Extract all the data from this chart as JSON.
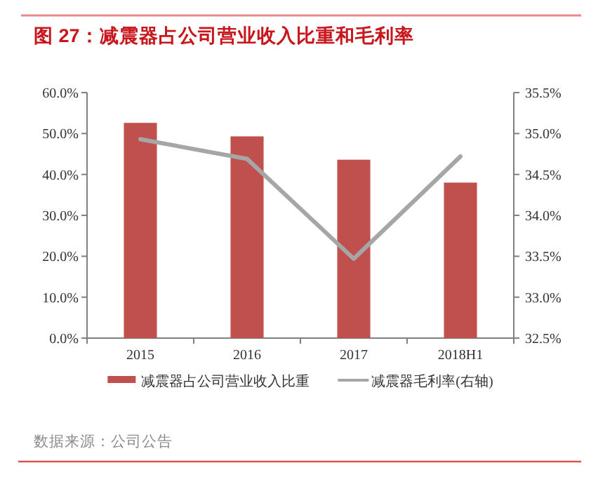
{
  "chart_data": {
    "type": "bar",
    "title": "图 27：减震器占公司营业收入比重和毛利率",
    "categories": [
      "2015",
      "2016",
      "2017",
      "2018H1"
    ],
    "series": [
      {
        "name": "减震器占公司营业收入比重",
        "color": "#c0504d",
        "values": [
          52.6,
          49.3,
          43.6,
          38.0
        ]
      },
      {
        "name": "减震器毛利率(右轴)",
        "type": "line",
        "axis": "y2",
        "color": "#a6a6a6",
        "values": [
          34.93,
          34.69,
          33.47,
          34.72
        ]
      }
    ],
    "ylim": [
      0,
      60
    ],
    "yticks": [
      {
        "value": 0,
        "label": "0.0%"
      },
      {
        "value": 10,
        "label": "10.0%"
      },
      {
        "value": 20,
        "label": "20.0%"
      },
      {
        "value": 30,
        "label": "30.0%"
      },
      {
        "value": 40,
        "label": "40.0%"
      },
      {
        "value": 50,
        "label": "50.0%"
      },
      {
        "value": 60,
        "label": "60.0%"
      }
    ],
    "y2lim": [
      32.5,
      35.5
    ],
    "y2ticks": [
      {
        "value": 32.5,
        "label": "32.5%"
      },
      {
        "value": 33,
        "label": "33.0%"
      },
      {
        "value": 33.5,
        "label": "33.5%"
      },
      {
        "value": 34,
        "label": "34.0%"
      },
      {
        "value": 34.5,
        "label": "34.5%"
      },
      {
        "value": 35,
        "label": "35.0%"
      },
      {
        "value": 35.5,
        "label": "35.5%"
      }
    ],
    "grid": false,
    "legend": "bottom",
    "marker": "none",
    "line_style": "solid",
    "annotations": [
      "数据来源：公司公告"
    ]
  }
}
